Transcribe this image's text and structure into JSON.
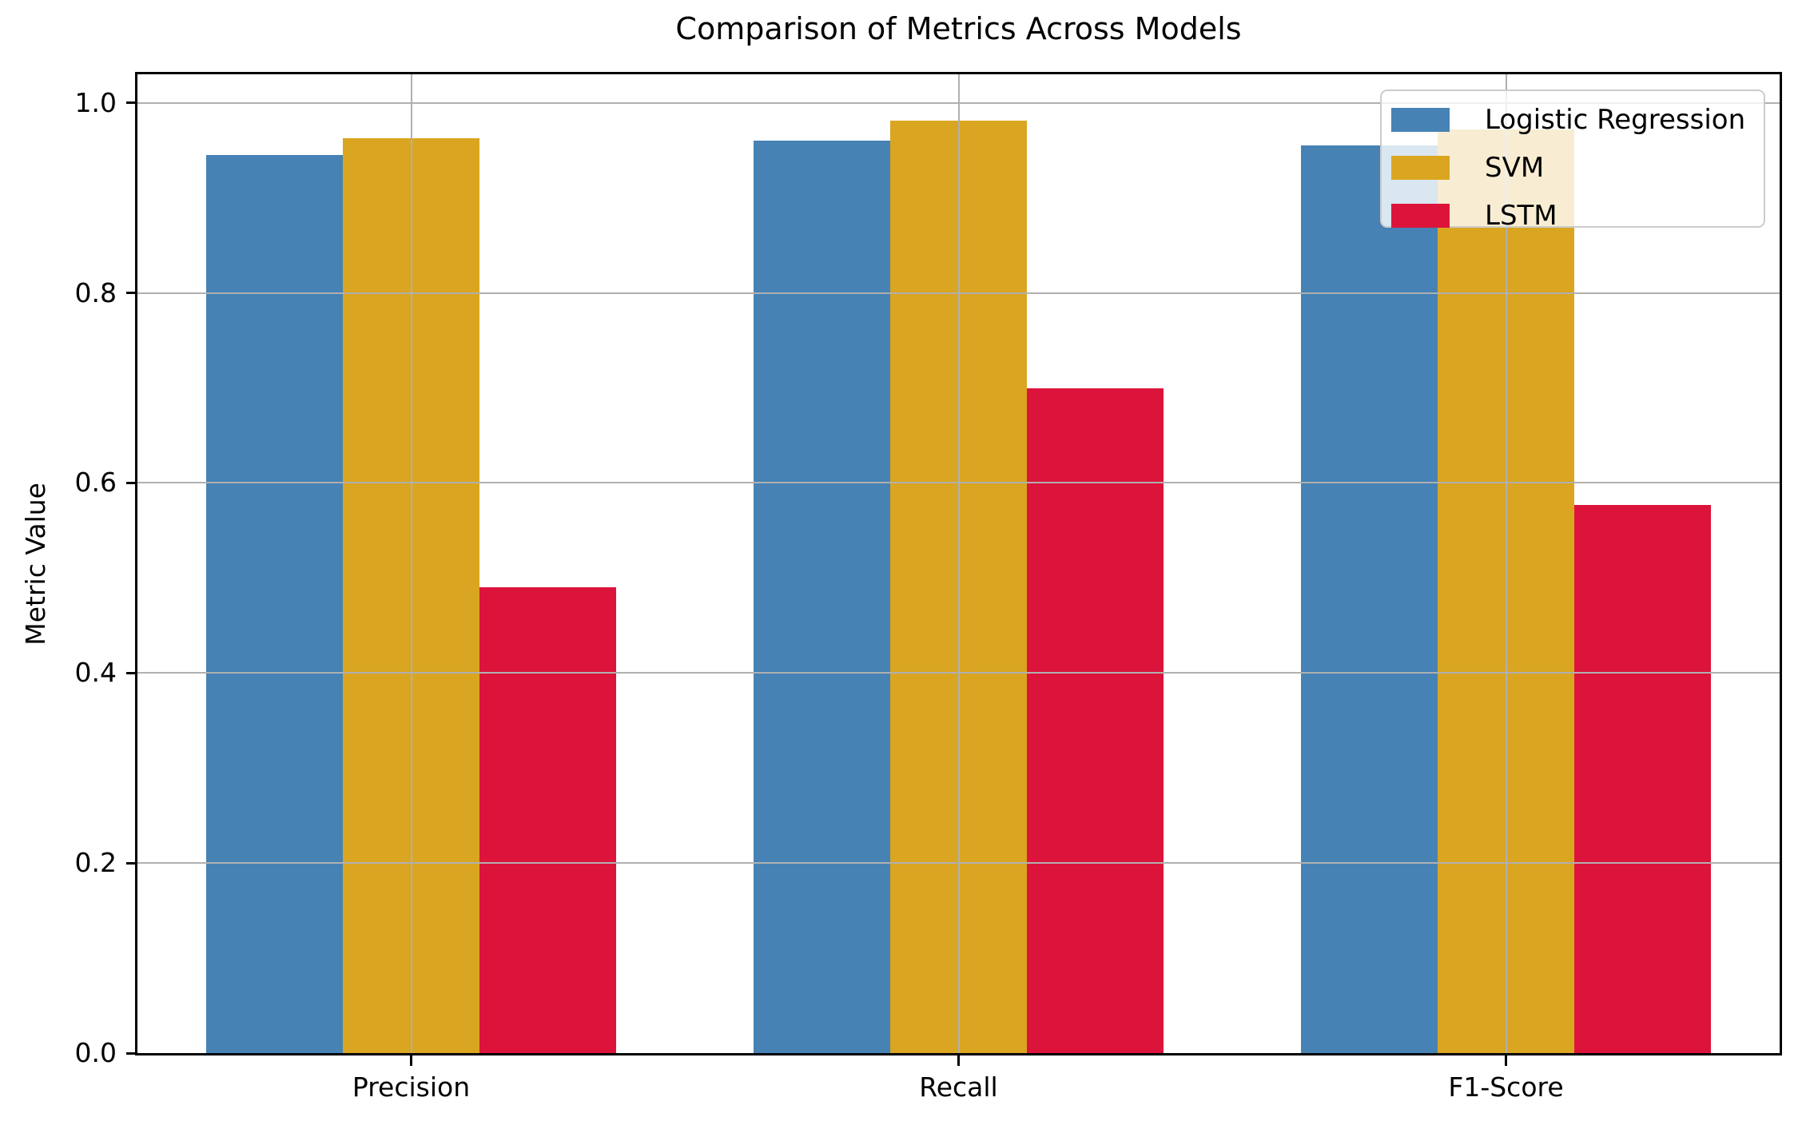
{
  "chart_data": {
    "type": "bar",
    "title": "Comparison of Metrics Across Models",
    "ylabel": "Metric Value",
    "xlabel": "",
    "categories": [
      "Precision",
      "Recall",
      "F1-Score"
    ],
    "series": [
      {
        "name": "Logistic Regression",
        "color": "#4682B4",
        "values": [
          0.945,
          0.96,
          0.955
        ]
      },
      {
        "name": "SVM",
        "color": "#DAA520",
        "values": [
          0.963,
          0.981,
          0.972
        ]
      },
      {
        "name": "LSTM",
        "color": "#DC143C",
        "values": [
          0.49,
          0.7,
          0.577
        ]
      }
    ],
    "ylim": [
      0,
      1.03
    ],
    "yticks": [
      0.0,
      0.2,
      0.4,
      0.6,
      0.8,
      1.0
    ],
    "ytick_labels": [
      "0.0",
      "0.2",
      "0.4",
      "0.6",
      "0.8",
      "1.0"
    ],
    "grid": true,
    "grid_color": "#b0b0b0",
    "grid_above_bars": true,
    "bar_group_width_fraction": 0.75,
    "legend": {
      "position": "upper right",
      "labels": [
        "Logistic Regression",
        "SVM",
        "LSTM"
      ]
    },
    "background": "#ffffff"
  }
}
